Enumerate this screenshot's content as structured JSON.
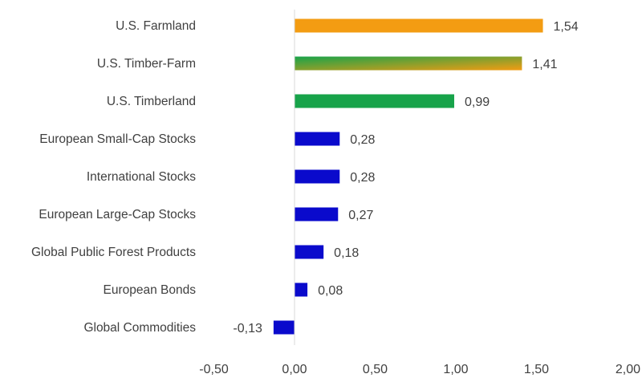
{
  "chart_data": {
    "type": "bar",
    "orientation": "horizontal",
    "categories": [
      "U.S. Farmland",
      "U.S. Timber-Farm",
      "U.S. Timberland",
      "European Small-Cap Stocks",
      "International Stocks",
      "European Large-Cap Stocks",
      "Global Public Forest Products",
      "European Bonds",
      "Global Commodities"
    ],
    "values": [
      1.54,
      1.41,
      0.99,
      0.28,
      0.28,
      0.27,
      0.18,
      0.08,
      -0.13
    ],
    "value_labels": [
      "1,54",
      "1,41",
      "0,99",
      "0,28",
      "0,28",
      "0,27",
      "0,18",
      "0,08",
      "-0,13"
    ],
    "bar_colors": [
      "#F39C12",
      "gradient",
      "#17A34A",
      "#0A0ACC",
      "#0A0ACC",
      "#0A0ACC",
      "#0A0ACC",
      "#0A0ACC",
      "#0A0ACC"
    ],
    "gradient_colors": [
      "#17A34A",
      "#F39C12"
    ],
    "x_ticks": [
      -0.5,
      0,
      0.5,
      1,
      1.5,
      2
    ],
    "x_tick_labels": [
      "-0,50",
      "0,00",
      "0,50",
      "1,00",
      "1,50",
      "2,00"
    ],
    "xlim": [
      -0.5,
      2.0
    ],
    "title": "",
    "xlabel": "",
    "ylabel": "",
    "grid": false,
    "legend": "none"
  }
}
